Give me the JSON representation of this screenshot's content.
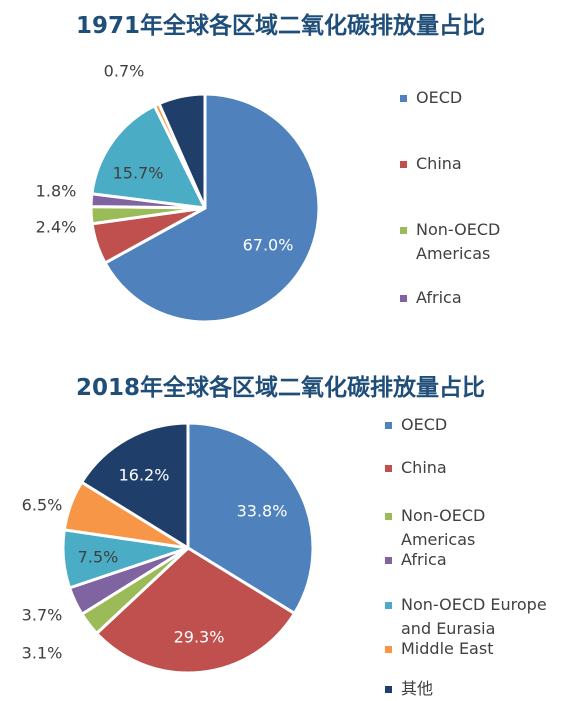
{
  "chart_data": [
    {
      "type": "pie",
      "title": "1971年全球各区域二氧化碳排放量占比",
      "slices": [
        {
          "name": "OECD",
          "value": 67.0,
          "label": "67.0%",
          "color": "#4f81bd",
          "label_pos": "inside",
          "label_color": "#ffffff"
        },
        {
          "name": "China",
          "value": 5.8,
          "label": "",
          "color": "#c0504d",
          "label_pos": "none",
          "label_color": ""
        },
        {
          "name": "Non-OECD Americas",
          "value": 2.4,
          "label": "2.4%",
          "color": "#9bbb59",
          "label_pos": "outside",
          "label_color": "#404040"
        },
        {
          "name": "Africa",
          "value": 1.8,
          "label": "1.8%",
          "color": "#8064a2",
          "label_pos": "outside",
          "label_color": "#404040"
        },
        {
          "name": "Non-OECD Europe and Eurasia",
          "value": 15.7,
          "label": "15.7%",
          "color": "#4bacc6",
          "label_pos": "inside",
          "label_color": "#404040"
        },
        {
          "name": "Middle East",
          "value": 0.7,
          "label": "0.7%",
          "color": "#f79646",
          "label_pos": "outside",
          "label_color": "#404040"
        },
        {
          "name": "其他",
          "value": 6.6,
          "label": "",
          "color": "#1f3f6a",
          "label_pos": "none",
          "label_color": ""
        }
      ],
      "legend": [
        {
          "label": "OECD",
          "color": "#4f81bd"
        },
        {
          "label": "China",
          "color": "#c0504d"
        },
        {
          "label": "Non-OECD\nAmericas",
          "color": "#9bbb59"
        },
        {
          "label": "Africa",
          "color": "#8064a2"
        }
      ],
      "legend_position": "right"
    },
    {
      "type": "pie",
      "title": "2018年全球各区域二氧化碳排放量占比",
      "slices": [
        {
          "name": "OECD",
          "value": 33.8,
          "label": "33.8%",
          "color": "#4f81bd",
          "label_pos": "inside",
          "label_color": "#ffffff"
        },
        {
          "name": "China",
          "value": 29.3,
          "label": "29.3%",
          "color": "#c0504d",
          "label_pos": "inside",
          "label_color": "#ffffff"
        },
        {
          "name": "Non-OECD Americas",
          "value": 3.1,
          "label": "3.1%",
          "color": "#9bbb59",
          "label_pos": "outside",
          "label_color": "#404040"
        },
        {
          "name": "Africa",
          "value": 3.7,
          "label": "3.7%",
          "color": "#8064a2",
          "label_pos": "outside",
          "label_color": "#404040"
        },
        {
          "name": "Non-OECD Europe and Eurasia",
          "value": 7.5,
          "label": "7.5%",
          "color": "#4bacc6",
          "label_pos": "inside",
          "label_color": "#404040"
        },
        {
          "name": "Middle East",
          "value": 6.5,
          "label": "6.5%",
          "color": "#f79646",
          "label_pos": "outside",
          "label_color": "#404040"
        },
        {
          "name": "其他",
          "value": 16.2,
          "label": "16.2%",
          "color": "#1f3f6a",
          "label_pos": "inside",
          "label_color": "#ffffff"
        }
      ],
      "legend": [
        {
          "label": "OECD",
          "color": "#4f81bd"
        },
        {
          "label": "China",
          "color": "#c0504d"
        },
        {
          "label": "Non-OECD\nAmericas",
          "color": "#9bbb59"
        },
        {
          "label": "Africa",
          "color": "#8064a2"
        },
        {
          "label": "Non-OECD Europe\nand Eurasia",
          "color": "#4bacc6"
        },
        {
          "label": "Middle East",
          "color": "#f79646"
        },
        {
          "label": "其他",
          "color": "#1f3f6a"
        }
      ],
      "legend_position": "right"
    }
  ]
}
